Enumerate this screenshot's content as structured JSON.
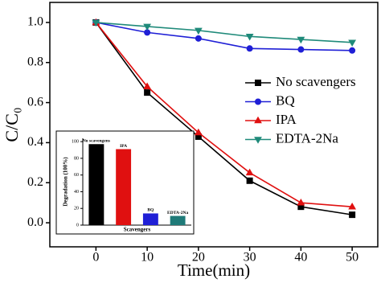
{
  "chart_data": [
    {
      "type": "line",
      "x_label": "Time(min)",
      "y_label": "C/C₀",
      "x": [
        0,
        10,
        20,
        30,
        40,
        50
      ],
      "xlim": [
        -9,
        55
      ],
      "xticks": [
        0,
        10,
        20,
        30,
        40,
        50
      ],
      "ylim": [
        -0.12,
        1.1
      ],
      "yticks": [
        {
          "value": 0,
          "label": "0.0"
        },
        0.2,
        0.4,
        0.6,
        0.8,
        {
          "value": 1,
          "label": "1.0"
        }
      ],
      "legend": "right",
      "series": [
        {
          "name": "No scavengers",
          "color": "#000000",
          "marker": "square",
          "values": [
            1.0,
            0.65,
            0.43,
            0.21,
            0.08,
            0.04
          ]
        },
        {
          "name": "BQ",
          "color": "#1f1fd6",
          "marker": "circle",
          "values": [
            1.0,
            0.95,
            0.92,
            0.87,
            0.865,
            0.86
          ]
        },
        {
          "name": "IPA",
          "color": "#e01010",
          "marker": "triangle",
          "values": [
            1.0,
            0.68,
            0.45,
            0.25,
            0.1,
            0.08
          ]
        },
        {
          "name": "EDTA-2Na",
          "color": "#1f8a7a",
          "marker": "triangle-down",
          "values": [
            1.0,
            0.98,
            0.96,
            0.93,
            0.915,
            0.9
          ]
        }
      ]
    },
    {
      "type": "bar",
      "x_label": "Scavengers",
      "y_label": "Degradation (100%)",
      "categories": [
        "No scavengens",
        "IPA",
        "BQ",
        "EDTA-2Na"
      ],
      "values": [
        97,
        91,
        14,
        11
      ],
      "colors": [
        "#000000",
        "#e01010",
        "#1f1fd6",
        "#1f7a78"
      ],
      "ylim": [
        0,
        104
      ],
      "yticks": [
        0,
        20,
        40,
        60,
        80,
        100
      ]
    }
  ]
}
